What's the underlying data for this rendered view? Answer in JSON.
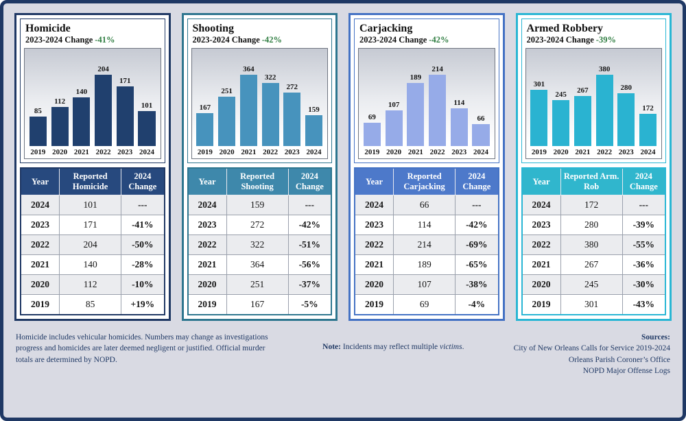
{
  "palette": {
    "navy": "#1f3864",
    "board_bg": "#d9dae3",
    "green": "#2f7d41",
    "red": "#c00000"
  },
  "chart_data": [
    {
      "type": "bar",
      "title": "Homicide",
      "change_label": "2023-2024 Change",
      "change_value": "-41%",
      "categories": [
        "2019",
        "2020",
        "2021",
        "2022",
        "2023",
        "2024"
      ],
      "values": [
        85,
        112,
        140,
        204,
        171,
        101
      ],
      "ylim": [
        0,
        220
      ],
      "grid": false,
      "legend": false,
      "colors": {
        "accent": "#1f3864",
        "bar": "#20406e",
        "header": "#27497e"
      },
      "table": {
        "headers": [
          "Year",
          "Reported Homicide",
          "2024 Change"
        ],
        "rows": [
          {
            "year": "2024",
            "reported": "101",
            "change": "---",
            "change_class": "neutral"
          },
          {
            "year": "2023",
            "reported": "171",
            "change": "-41%",
            "change_class": "green"
          },
          {
            "year": "2022",
            "reported": "204",
            "change": "-50%",
            "change_class": "green"
          },
          {
            "year": "2021",
            "reported": "140",
            "change": "-28%",
            "change_class": "green"
          },
          {
            "year": "2020",
            "reported": "112",
            "change": "-10%",
            "change_class": "green"
          },
          {
            "year": "2019",
            "reported": "85",
            "change": "+19%",
            "change_class": "red"
          }
        ]
      }
    },
    {
      "type": "bar",
      "title": "Shooting",
      "change_label": "2023-2024 Change",
      "change_value": "-42%",
      "categories": [
        "2019",
        "2020",
        "2021",
        "2022",
        "2023",
        "2024"
      ],
      "values": [
        167,
        251,
        364,
        322,
        272,
        159
      ],
      "ylim": [
        0,
        400
      ],
      "grid": false,
      "legend": false,
      "colors": {
        "accent": "#2e768f",
        "bar": "#4793bd",
        "header": "#3e88ab"
      },
      "table": {
        "headers": [
          "Year",
          "Reported Shooting",
          "2024 Change"
        ],
        "rows": [
          {
            "year": "2024",
            "reported": "159",
            "change": "---",
            "change_class": "neutral"
          },
          {
            "year": "2023",
            "reported": "272",
            "change": "-42%",
            "change_class": "green"
          },
          {
            "year": "2022",
            "reported": "322",
            "change": "-51%",
            "change_class": "green"
          },
          {
            "year": "2021",
            "reported": "364",
            "change": "-56%",
            "change_class": "green"
          },
          {
            "year": "2020",
            "reported": "251",
            "change": "-37%",
            "change_class": "green"
          },
          {
            "year": "2019",
            "reported": "167",
            "change": "-5%",
            "change_class": "green"
          }
        ]
      }
    },
    {
      "type": "bar",
      "title": "Carjacking",
      "change_label": "2023-2024 Change",
      "change_value": "-42%",
      "categories": [
        "2019",
        "2020",
        "2021",
        "2022",
        "2023",
        "2024"
      ],
      "values": [
        69,
        107,
        189,
        214,
        114,
        66
      ],
      "ylim": [
        0,
        230
      ],
      "grid": false,
      "legend": false,
      "colors": {
        "accent": "#4472c4",
        "bar": "#96abe8",
        "header": "#4d79ca"
      },
      "table": {
        "headers": [
          "Year",
          "Reported Carjacking",
          "2024 Change"
        ],
        "rows": [
          {
            "year": "2024",
            "reported": "66",
            "change": "---",
            "change_class": "neutral"
          },
          {
            "year": "2023",
            "reported": "114",
            "change": "-42%",
            "change_class": "green"
          },
          {
            "year": "2022",
            "reported": "214",
            "change": "-69%",
            "change_class": "green"
          },
          {
            "year": "2021",
            "reported": "189",
            "change": "-65%",
            "change_class": "green"
          },
          {
            "year": "2020",
            "reported": "107",
            "change": "-38%",
            "change_class": "green"
          },
          {
            "year": "2019",
            "reported": "69",
            "change": "-4%",
            "change_class": "green"
          }
        ]
      }
    },
    {
      "type": "bar",
      "title": "Armed Robbery",
      "change_label": "2023-2024 Change",
      "change_value": "-39%",
      "categories": [
        "2019",
        "2020",
        "2021",
        "2022",
        "2023",
        "2024"
      ],
      "values": [
        301,
        245,
        267,
        380,
        280,
        172
      ],
      "ylim": [
        0,
        410
      ],
      "grid": false,
      "legend": false,
      "colors": {
        "accent": "#29b6d4",
        "bar": "#2ab3d1",
        "header": "#30b6cd"
      },
      "table": {
        "headers": [
          "Year",
          "Reported Arm. Rob",
          "2024 Change"
        ],
        "rows": [
          {
            "year": "2024",
            "reported": "172",
            "change": "---",
            "change_class": "neutral"
          },
          {
            "year": "2023",
            "reported": "280",
            "change": "-39%",
            "change_class": "green"
          },
          {
            "year": "2022",
            "reported": "380",
            "change": "-55%",
            "change_class": "green"
          },
          {
            "year": "2021",
            "reported": "267",
            "change": "-36%",
            "change_class": "green"
          },
          {
            "year": "2020",
            "reported": "245",
            "change": "-30%",
            "change_class": "green"
          },
          {
            "year": "2019",
            "reported": "301",
            "change": "-43%",
            "change_class": "green"
          }
        ]
      }
    }
  ],
  "footer": {
    "left_note": "Homicide includes vehicular homicides. Numbers may change as investigations progress and homicides are later deemed negligent or justified. Official murder totals are determined by NOPD.",
    "center_note_label": "Note:",
    "center_note_text": " Incidents may reflect multiple ",
    "center_note_italic": "victims",
    "center_note_end": ".",
    "sources_label": "Sources:",
    "sources": [
      "City of New Orleans Calls for Service 2019-2024",
      "Orleans Parish Coroner’s Office",
      "NOPD Major Offense Logs"
    ]
  }
}
